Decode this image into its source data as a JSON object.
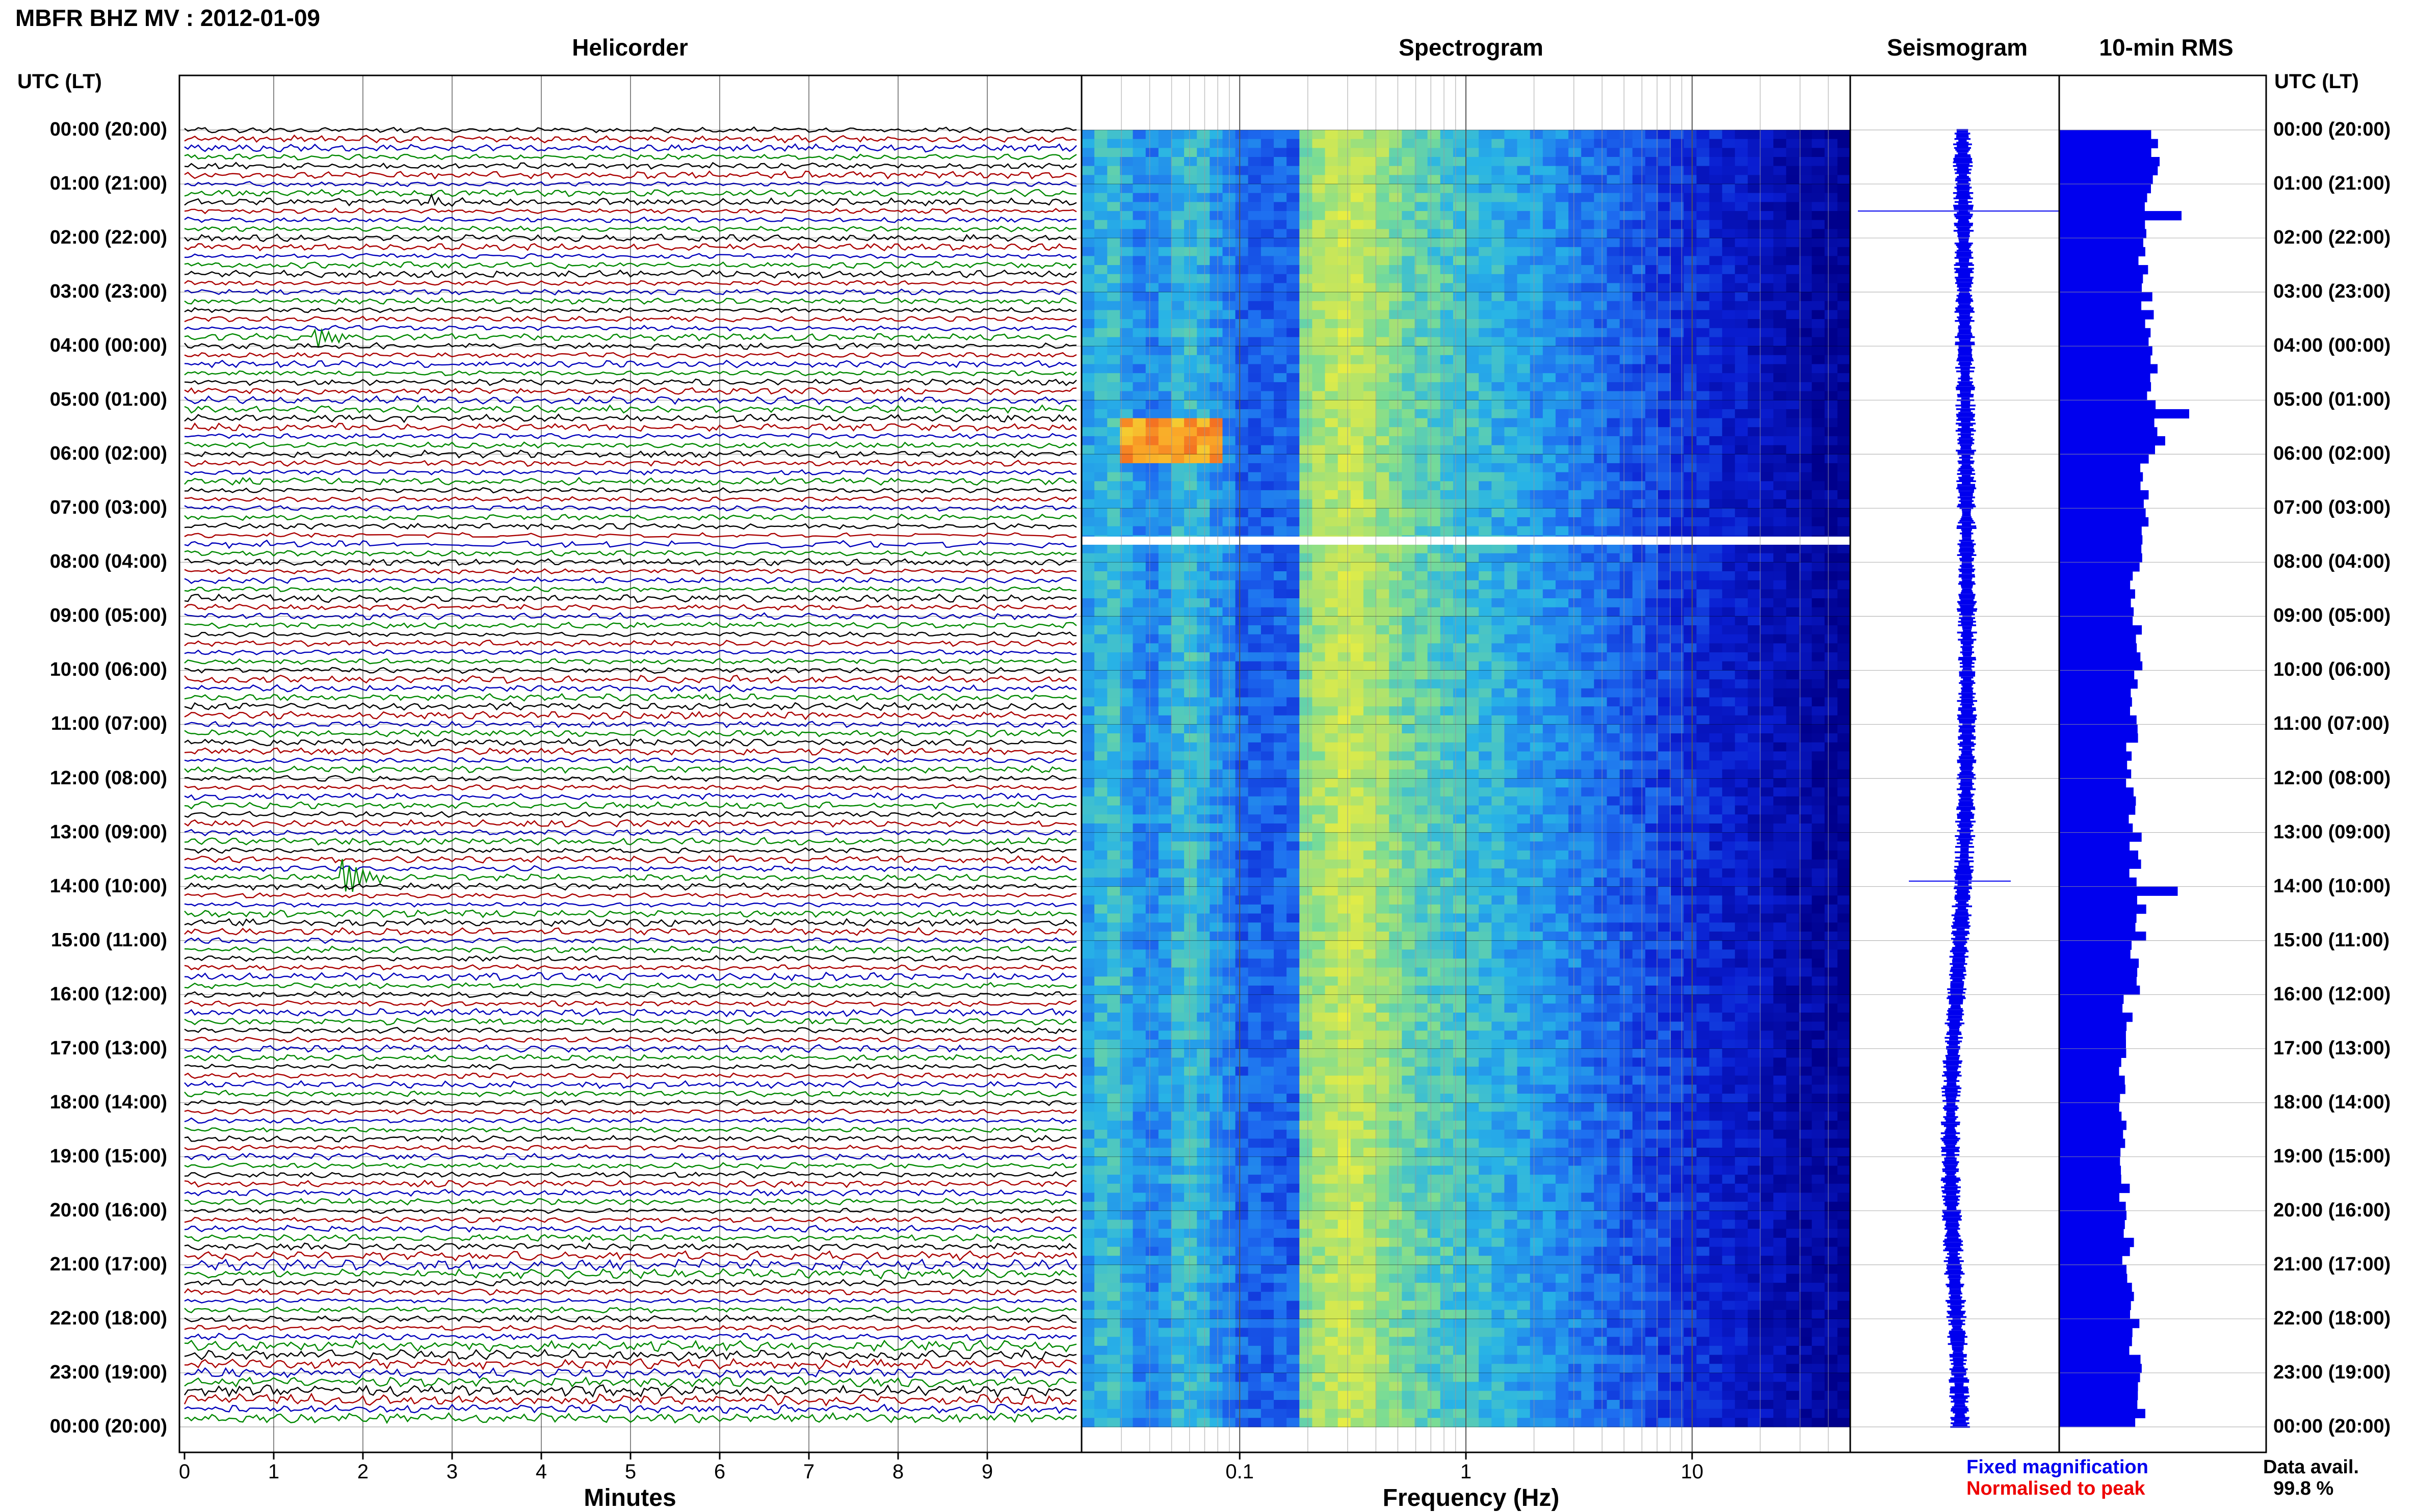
{
  "header": {
    "title": "MBFR BHZ MV : 2012-01-09"
  },
  "panels": {
    "helicorder": "Helicorder",
    "spectrogram": "Spectrogram",
    "seismogram": "Seismogram",
    "rms": "10-min RMS"
  },
  "axes": {
    "time_header_left": "UTC (LT)",
    "time_header_right": "UTC (LT)",
    "minutes_title": "Minutes",
    "frequency_title": "Frequency (Hz)",
    "minute_ticks": [
      "0",
      "1",
      "2",
      "3",
      "4",
      "5",
      "6",
      "7",
      "8",
      "9"
    ],
    "frequency_ticks": [
      "0.1",
      "1",
      "10"
    ]
  },
  "time_labels": [
    "00:00 (20:00)",
    "01:00 (21:00)",
    "02:00 (22:00)",
    "03:00 (23:00)",
    "04:00 (00:00)",
    "05:00 (01:00)",
    "06:00 (02:00)",
    "07:00 (03:00)",
    "08:00 (04:00)",
    "09:00 (05:00)",
    "10:00 (06:00)",
    "11:00 (07:00)",
    "12:00 (08:00)",
    "13:00 (09:00)",
    "14:00 (10:00)",
    "15:00 (11:00)",
    "16:00 (12:00)",
    "17:00 (13:00)",
    "18:00 (14:00)",
    "19:00 (15:00)",
    "20:00 (16:00)",
    "21:00 (17:00)",
    "22:00 (18:00)",
    "23:00 (19:00)",
    "00:00 (20:00)"
  ],
  "legend": {
    "fixed": "Fixed magnification",
    "normalised": "Normalised to peak",
    "fixed_color": "#0000ee",
    "normalised_color": "#ee0000"
  },
  "data_availability": {
    "label": "Data avail.",
    "value": "99.8 %"
  },
  "chart_data": {
    "type": "heatmap",
    "title": "MBFR BHZ MV : 2012-01-09",
    "helicorder": {
      "minutes_per_line": 10,
      "lines": 144,
      "xlim": [
        0,
        10
      ],
      "trace_colors": [
        "#000000",
        "#aa0000",
        "#0000bb",
        "#008800"
      ],
      "events": [
        {
          "hour": 1.3,
          "minute": 2.8,
          "amplitude": 0.8
        },
        {
          "hour": 13.8,
          "minute": 1.8,
          "amplitude": 0.5
        },
        {
          "hour": 3.8,
          "minute": 1.5,
          "amplitude": 0.25
        }
      ]
    },
    "spectrogram": {
      "xscale": "log",
      "xlim": [
        0.02,
        50
      ],
      "peak_band_hz": [
        0.2,
        0.6
      ],
      "gap_hour": 7.6
    },
    "seismogram": {
      "events": [
        {
          "hour": 1.5,
          "amplitude": 1.0
        },
        {
          "hour": 13.9,
          "amplitude": 0.5
        }
      ]
    },
    "rms_10min": {
      "interval_minutes": 10,
      "hours": [
        0,
        1,
        2,
        3,
        4,
        5,
        6,
        7,
        8,
        9,
        10,
        11,
        12,
        13,
        14,
        15,
        16,
        17,
        18,
        19,
        20,
        21,
        22,
        23
      ],
      "values": [
        1.25,
        1.2,
        1.1,
        1.15,
        1.2,
        1.3,
        1.1,
        1.15,
        1.0,
        1.05,
        1.0,
        0.95,
        0.95,
        1.0,
        1.05,
        1.0,
        0.9,
        0.85,
        0.85,
        0.85,
        0.9,
        0.95,
        1.0,
        1.05
      ],
      "spikes": [
        {
          "hour": 1.5,
          "value": 1.6
        },
        {
          "hour": 5.2,
          "value": 1.7
        },
        {
          "hour": 14.0,
          "value": 1.55
        }
      ]
    }
  }
}
